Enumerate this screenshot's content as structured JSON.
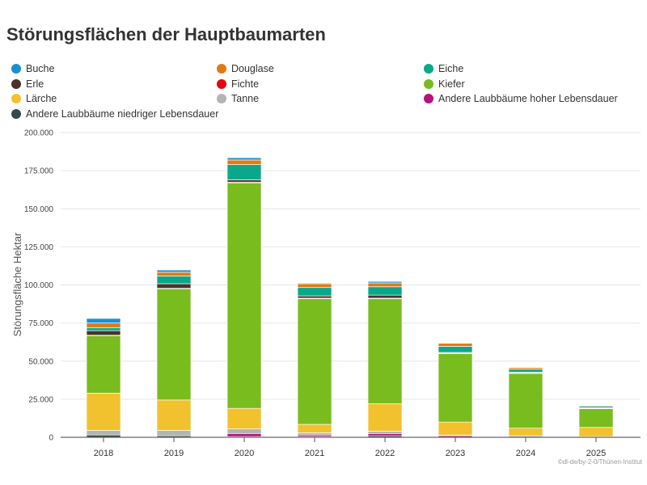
{
  "chart_data": {
    "type": "bar",
    "stacked": true,
    "title": "Störungsflächen der Hauptbaumarten",
    "xlabel": "",
    "ylabel": "Störungsfläche Hektar",
    "ylim": [
      0,
      200000
    ],
    "yticks": [
      "0",
      "25.000",
      "50.000",
      "75.000",
      "100.000",
      "125.000",
      "150.000",
      "175.000",
      "200.000"
    ],
    "ytick_values": [
      0,
      25000,
      50000,
      75000,
      100000,
      125000,
      150000,
      175000,
      200000
    ],
    "grid": true,
    "legend_position": "top",
    "categories": [
      "2018",
      "2019",
      "2020",
      "2021",
      "2022",
      "2023",
      "2024",
      "2025"
    ],
    "series": [
      {
        "name": "Buche",
        "color": "#1a8fd6",
        "values": [
          3000,
          1500,
          1500,
          500,
          1000,
          0,
          0,
          0
        ]
      },
      {
        "name": "Douglase",
        "color": "#e07b12",
        "values": [
          3000,
          2500,
          3000,
          2500,
          2500,
          2000,
          1000,
          500
        ]
      },
      {
        "name": "Eiche",
        "color": "#0aa88a",
        "values": [
          2000,
          5000,
          10000,
          5500,
          5500,
          4000,
          2000,
          1000
        ]
      },
      {
        "name": "Erle",
        "color": "#4a3328",
        "values": [
          3000,
          3000,
          1500,
          1500,
          2000,
          500,
          500,
          300
        ]
      },
      {
        "name": "Fichte",
        "color": "#e30613",
        "values": [
          500,
          300,
          500,
          300,
          300,
          200,
          200,
          100
        ]
      },
      {
        "name": "Kiefer",
        "color": "#78bc1e",
        "values": [
          37500,
          73000,
          148000,
          82500,
          69000,
          45000,
          36000,
          12500
        ]
      },
      {
        "name": "Lärche",
        "color": "#f2c12e",
        "values": [
          24500,
          20000,
          13500,
          5500,
          18000,
          8500,
          5000,
          6000
        ]
      },
      {
        "name": "Tanne",
        "color": "#b4b4b4",
        "values": [
          3000,
          3500,
          3000,
          1500,
          1500,
          500,
          1000,
          500
        ]
      },
      {
        "name": "Andere Laubbäume hoher Lebensdauer",
        "color": "#b5127d",
        "values": [
          0,
          0,
          2000,
          1000,
          1500,
          1000,
          0,
          0
        ]
      },
      {
        "name": "Andere Laubbäume niedriger Lebensdauer",
        "color": "#35494a",
        "values": [
          1500,
          1000,
          500,
          500,
          1000,
          0,
          0,
          0
        ]
      }
    ]
  },
  "credit": "©dl-de/by-2-0/Thünen-Institut"
}
